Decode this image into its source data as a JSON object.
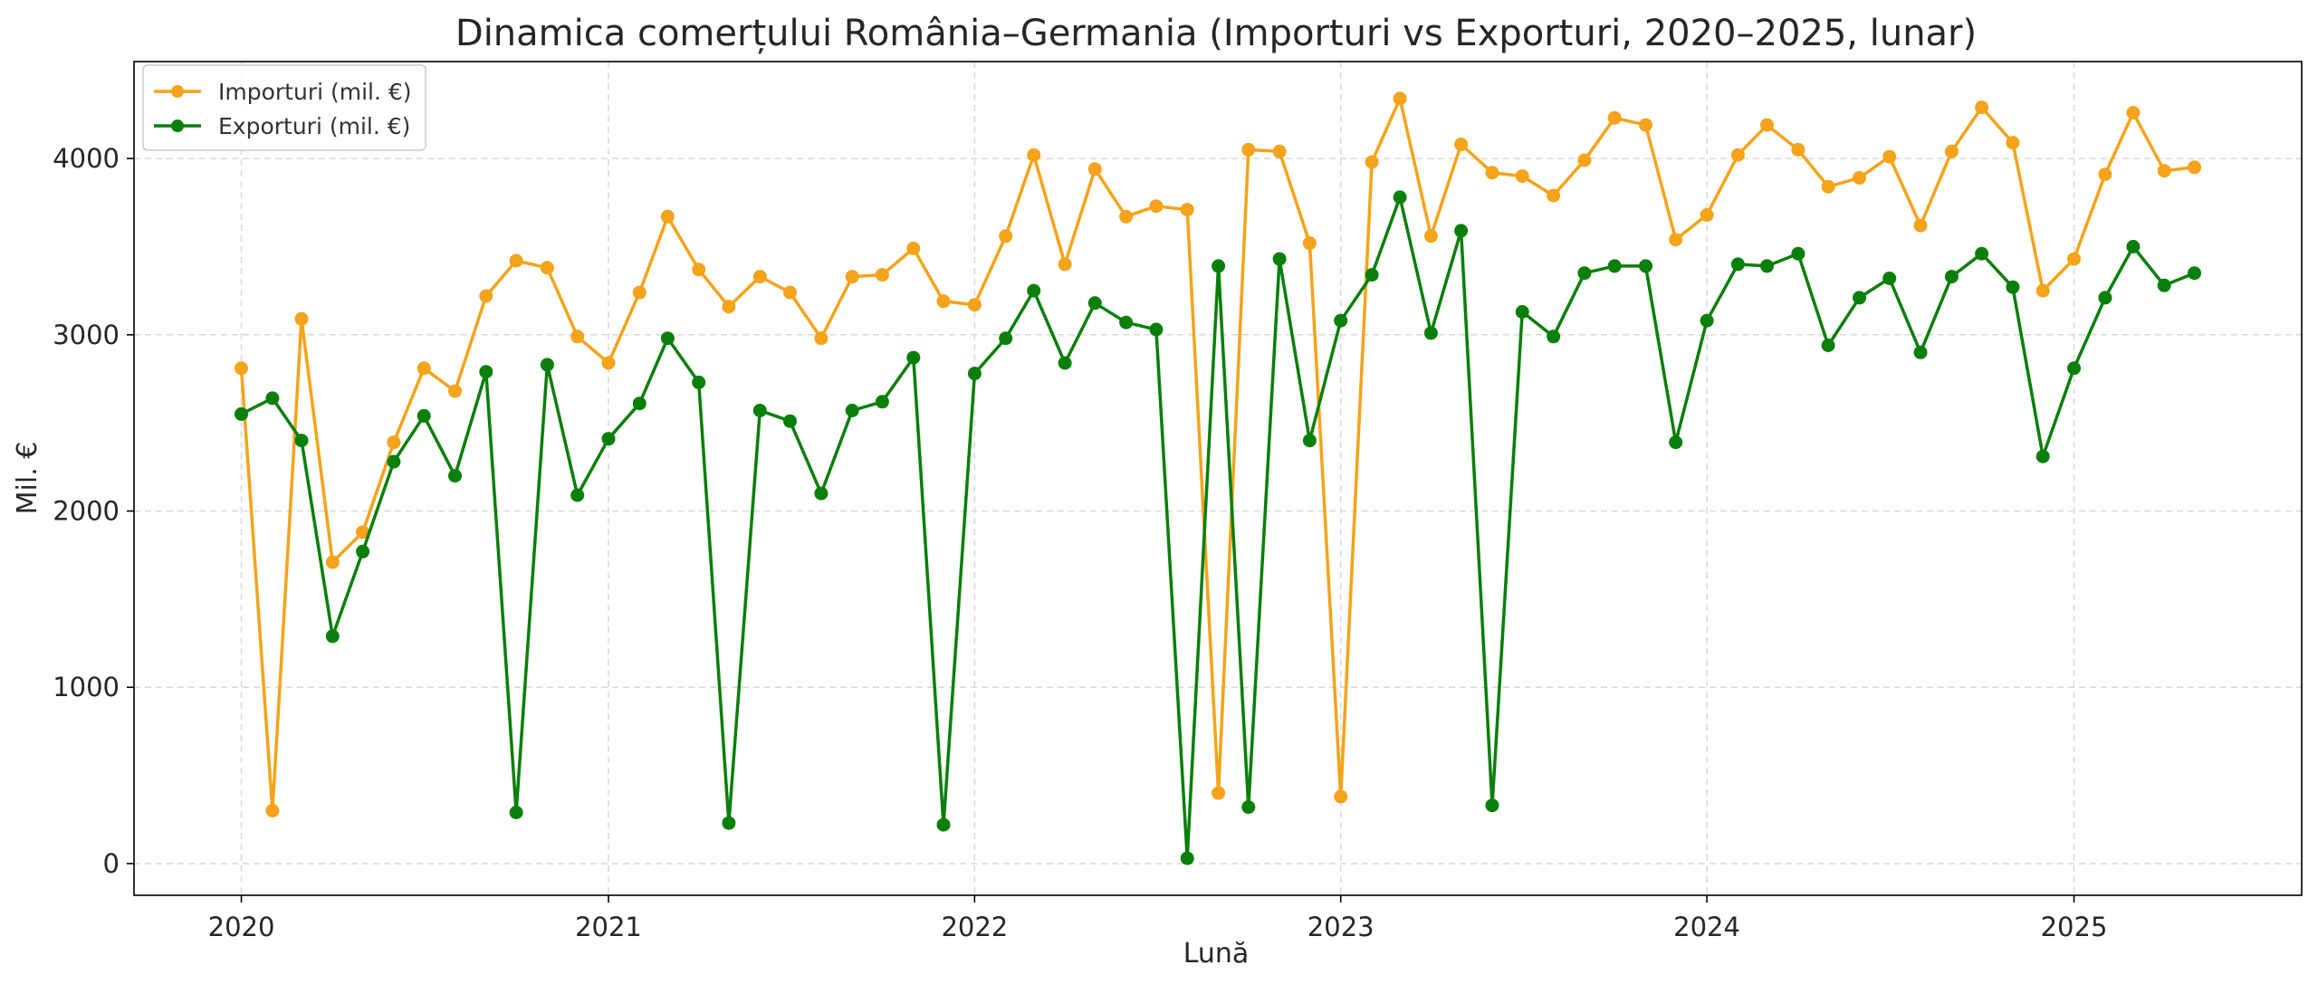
{
  "chart_data": {
    "type": "line",
    "title": "Dinamica comerțului România–Germania (Importuri vs Exporturi, 2020–2025, lunar)",
    "xlabel": "Lună",
    "ylabel": "Mil. €",
    "xlim": [
      "2019-09-16",
      "2025-08-16"
    ],
    "ylim": [
      -180,
      4550
    ],
    "x_ticks": [
      "2020-01-01",
      "2021-01-01",
      "2022-01-01",
      "2023-01-01",
      "2024-01-01",
      "2025-01-01"
    ],
    "x_tick_labels": [
      "2020",
      "2021",
      "2022",
      "2023",
      "2024",
      "2025"
    ],
    "y_ticks": [
      0,
      1000,
      2000,
      3000,
      4000
    ],
    "y_tick_labels": [
      "0",
      "1000",
      "2000",
      "3000",
      "4000"
    ],
    "grid": true,
    "legend_position": "top-left",
    "x": [
      "2020-01",
      "2020-02",
      "2020-03",
      "2020-04",
      "2020-05",
      "2020-06",
      "2020-07",
      "2020-08",
      "2020-09",
      "2020-10",
      "2020-11",
      "2020-12",
      "2021-01",
      "2021-02",
      "2021-03",
      "2021-04",
      "2021-05",
      "2021-06",
      "2021-07",
      "2021-08",
      "2021-09",
      "2021-10",
      "2021-11",
      "2021-12",
      "2022-01",
      "2022-02",
      "2022-03",
      "2022-04",
      "2022-05",
      "2022-06",
      "2022-07",
      "2022-08",
      "2022-09",
      "2022-10",
      "2022-11",
      "2022-12",
      "2023-01",
      "2023-02",
      "2023-03",
      "2023-04",
      "2023-05",
      "2023-06",
      "2023-07",
      "2023-08",
      "2023-09",
      "2023-10",
      "2023-11",
      "2023-12",
      "2024-01",
      "2024-02",
      "2024-03",
      "2024-04",
      "2024-05",
      "2024-06",
      "2024-07",
      "2024-08",
      "2024-09",
      "2024-10",
      "2024-11",
      "2024-12",
      "2025-01",
      "2025-02",
      "2025-03",
      "2025-04",
      "2025-05",
      "2025-06"
    ],
    "series": [
      {
        "name": "Importuri (mil. €)",
        "color": "#f5a31a",
        "values": [
          2810,
          300,
          3090,
          1710,
          1880,
          2390,
          2810,
          2680,
          3220,
          3420,
          3380,
          2990,
          2840,
          3240,
          3670,
          3370,
          3160,
          3330,
          3240,
          2980,
          3330,
          3340,
          3490,
          3190,
          3170,
          3560,
          4020,
          3400,
          3940,
          3670,
          3730,
          3710,
          400,
          4050,
          4040,
          3520,
          380,
          3980,
          4340,
          3560,
          4080,
          3920,
          3900,
          3790,
          3990,
          4230,
          4190,
          3540,
          3680,
          4020,
          4190,
          4050,
          3840,
          3890,
          4010,
          3620,
          4040,
          4290,
          4090,
          3250,
          3430,
          3910,
          4260,
          3930,
          3950,
          null
        ]
      },
      {
        "name": "Exporturi (mil. €)",
        "color": "#0a7f0a",
        "values": [
          2550,
          2640,
          2400,
          1290,
          1770,
          2280,
          2540,
          2200,
          2790,
          290,
          2830,
          2090,
          2410,
          2610,
          2980,
          2730,
          230,
          2570,
          2510,
          2100,
          2570,
          2620,
          2870,
          220,
          2780,
          2980,
          3250,
          2840,
          3180,
          3070,
          3030,
          30,
          3390,
          320,
          3430,
          2400,
          3080,
          3340,
          3780,
          3010,
          3590,
          330,
          3130,
          2990,
          3350,
          3390,
          3390,
          2390,
          3080,
          3400,
          3390,
          3460,
          2940,
          3210,
          3320,
          2900,
          3330,
          3460,
          3270,
          2310,
          2810,
          3210,
          3500,
          3280,
          3350,
          null
        ]
      }
    ]
  }
}
